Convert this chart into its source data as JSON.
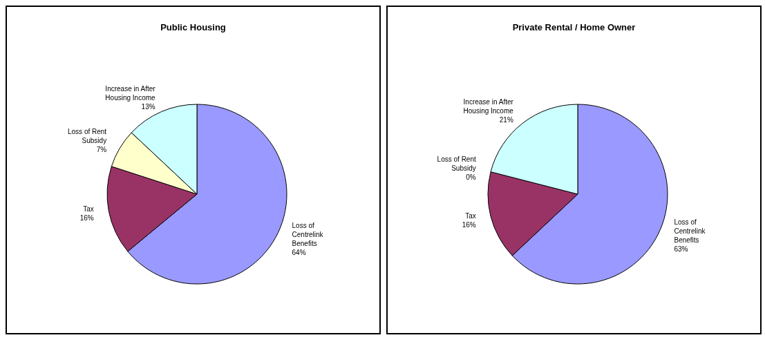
{
  "chart_data": [
    {
      "type": "pie",
      "title": "Public Housing",
      "categories": [
        "Loss of Centrelink Benefits",
        "Tax",
        "Loss of Rent Subsidy",
        "Increase in After Housing Income"
      ],
      "values": [
        64,
        16,
        7,
        13
      ],
      "colors": [
        "#9999ff",
        "#993366",
        "#ffffcc",
        "#ccffff"
      ],
      "value_labels": [
        "64%",
        "16%",
        "7%",
        "13%"
      ]
    },
    {
      "type": "pie",
      "title": "Private Rental / Home Owner",
      "categories": [
        "Loss of Centrelink Benefits",
        "Tax",
        "Loss of Rent Subsidy",
        "Increase in After Housing Income"
      ],
      "values": [
        63,
        16,
        0,
        21
      ],
      "colors": [
        "#9999ff",
        "#993366",
        "#ffffcc",
        "#ccffff"
      ],
      "value_labels": [
        "63%",
        "16%",
        "0%",
        "21%"
      ]
    }
  ]
}
